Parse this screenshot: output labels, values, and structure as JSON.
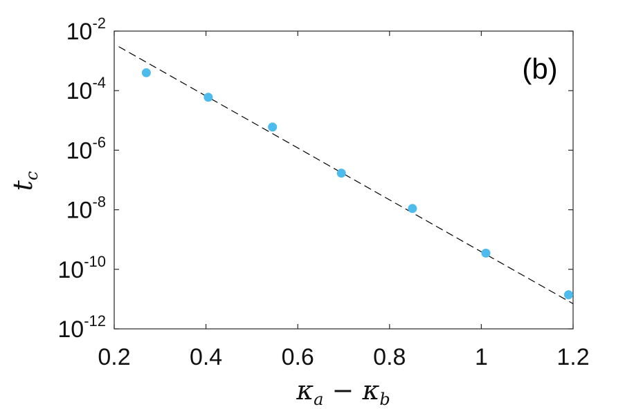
{
  "chart_data": {
    "type": "scatter",
    "panel_label": "(b)",
    "xlabel": {
      "main1": "κ",
      "sub1": "a",
      "op": " − ",
      "main2": "κ",
      "sub2": "b"
    },
    "ylabel": {
      "main": "t",
      "sub": "c"
    },
    "xlim": [
      0.2,
      1.2
    ],
    "ylim_log10": [
      -12,
      -2
    ],
    "yscale": "log",
    "grid": false,
    "x_ticks": [
      0.2,
      0.4,
      0.6,
      0.8,
      1.0,
      1.2
    ],
    "x_tick_labels": [
      "0.2",
      "0.4",
      "0.6",
      "0.8",
      "1",
      "1.2"
    ],
    "y_ticks_exp": [
      -12,
      -10,
      -8,
      -6,
      -4,
      -2
    ],
    "y_tick_labels": [
      {
        "base": "10",
        "exp": "-12"
      },
      {
        "base": "10",
        "exp": "-10"
      },
      {
        "base": "10",
        "exp": "-8"
      },
      {
        "base": "10",
        "exp": "-6"
      },
      {
        "base": "10",
        "exp": "-4"
      },
      {
        "base": "10",
        "exp": "-2"
      }
    ],
    "series": [
      {
        "kind": "points",
        "color": "#4dbbeb",
        "x": [
          0.27,
          0.405,
          0.545,
          0.695,
          0.85,
          1.01,
          1.19
        ],
        "y": [
          0.0004,
          6e-05,
          6e-06,
          1.7e-07,
          1.1e-08,
          3.5e-10,
          1.4e-11
        ]
      },
      {
        "kind": "dashed-line",
        "color": "#000000",
        "x": [
          0.21,
          1.2
        ],
        "y": [
          0.003,
          7e-12
        ]
      }
    ]
  }
}
